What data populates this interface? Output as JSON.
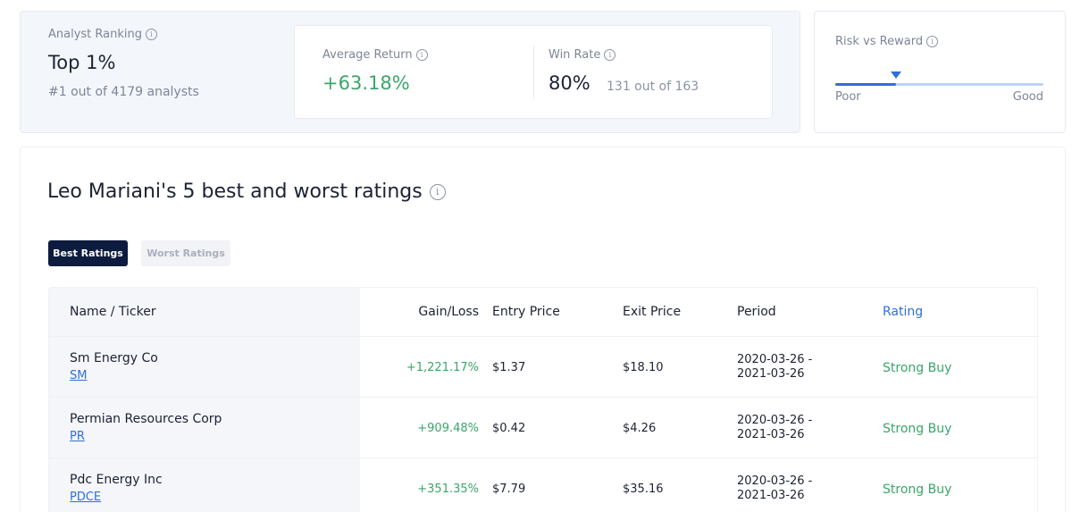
{
  "ranking": {
    "label": "Analyst Ranking",
    "value": "Top 1%",
    "sub": "#1 out of 4179 analysts",
    "info_icon": "i"
  },
  "average_return": {
    "label": "Average Return",
    "value": "+63.18%",
    "color": "#3aa66a"
  },
  "win_rate": {
    "label": "Win Rate",
    "value": "80%",
    "sub": "131 out of 163"
  },
  "risk_reward": {
    "label": "Risk vs Reward",
    "poor_label": "Poor",
    "good_label": "Good",
    "level": 0.29
  },
  "ratings": {
    "title": "Leo Mariani's 5 best and worst ratings",
    "tabs": {
      "best": "Best Ratings",
      "worst": "Worst Ratings",
      "active": "best"
    },
    "columns": [
      "Name / Ticker",
      "Gain/Loss",
      "Entry Price",
      "Exit Price",
      "Period",
      "Rating"
    ],
    "rows": [
      {
        "name": "Sm Energy Co",
        "ticker": "SM",
        "gain": "+1,221.17%",
        "entry": "$1.37",
        "exit": "$18.10",
        "period": "2020-03-26 - 2021-03-26",
        "rating": "Strong Buy"
      },
      {
        "name": "Permian Resources Corp",
        "ticker": "PR",
        "gain": "+909.48%",
        "entry": "$0.42",
        "exit": "$4.26",
        "period": "2020-03-26 - 2021-03-26",
        "rating": "Strong Buy"
      },
      {
        "name": "Pdc Energy Inc",
        "ticker": "PDCE",
        "gain": "+351.35%",
        "entry": "$7.79",
        "exit": "$35.16",
        "period": "2020-03-26 - 2021-03-26",
        "rating": "Strong Buy"
      }
    ]
  },
  "colors": {
    "accent": "#2f6fd8",
    "positive": "#3aa66a",
    "dark_tab": "#0d1b3e"
  }
}
